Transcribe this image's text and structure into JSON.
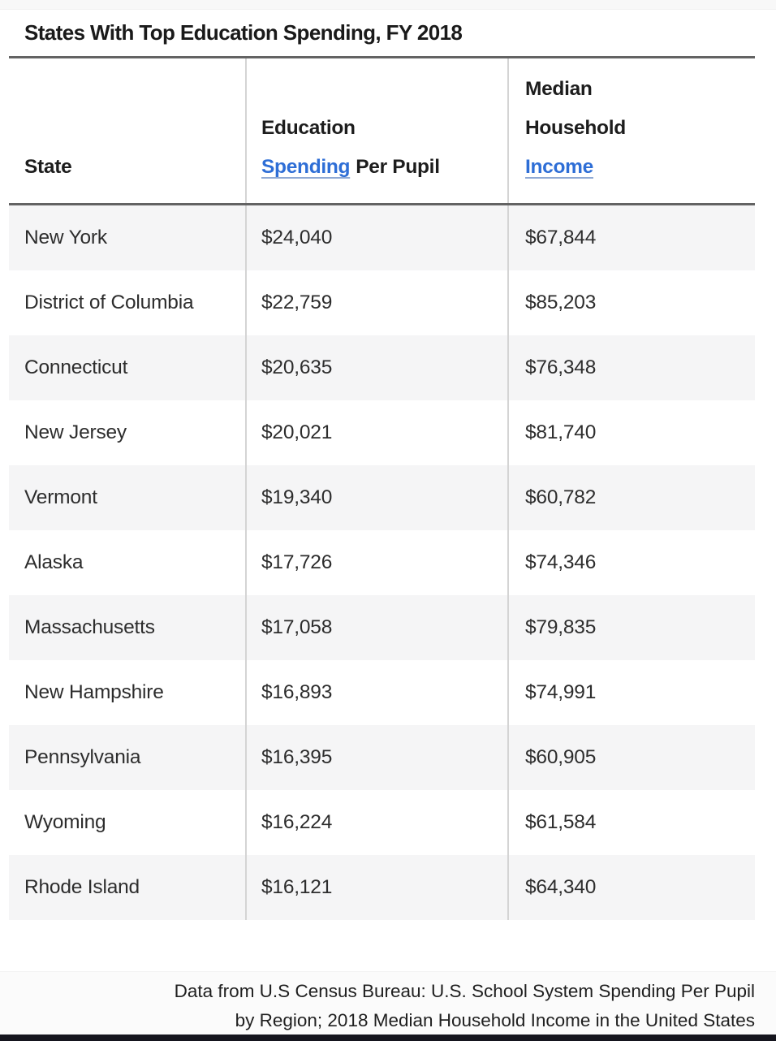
{
  "title": "States With Top Education Spending, FY 2018",
  "header": {
    "col_state": "State",
    "col_spending_line1": "Education",
    "col_spending_link": "Spending",
    "col_spending_rest": "Per Pupil",
    "col_income_line1": "Median",
    "col_income_line2": "Household",
    "col_income_link": "Income"
  },
  "rows": [
    {
      "state": "New York",
      "spending": "$24,040",
      "income": "$67,844"
    },
    {
      "state": "District of Columbia",
      "spending": "$22,759",
      "income": "$85,203"
    },
    {
      "state": "Connecticut",
      "spending": "$20,635",
      "income": "$76,348"
    },
    {
      "state": "New Jersey",
      "spending": "$20,021",
      "income": "$81,740"
    },
    {
      "state": "Vermont",
      "spending": "$19,340",
      "income": "$60,782"
    },
    {
      "state": "Alaska",
      "spending": "$17,726",
      "income": "$74,346"
    },
    {
      "state": "Massachusetts",
      "spending": "$17,058",
      "income": "$79,835"
    },
    {
      "state": "New Hampshire",
      "spending": "$16,893",
      "income": "$74,991"
    },
    {
      "state": "Pennsylvania",
      "spending": "$16,395",
      "income": "$60,905"
    },
    {
      "state": "Wyoming",
      "spending": "$16,224",
      "income": "$61,584"
    },
    {
      "state": "Rhode Island",
      "spending": "$16,121",
      "income": "$64,340"
    }
  ],
  "footer": {
    "line1": "Data from U.S Census Bureau: U.S. School System Spending Per Pupil",
    "line2": "by Region; 2018 Median Household Income in the United States"
  },
  "colors": {
    "link_blue": "#2e6ed6",
    "row_stripe": "#f5f5f6",
    "rule_dark": "#636363",
    "divider": "#d4d4d4",
    "bottom_bar": "#15151e"
  },
  "chart_data": {
    "type": "table",
    "title": "States With Top Education Spending, FY 2018",
    "columns": [
      "State",
      "Education Spending Per Pupil",
      "Median Household Income"
    ],
    "rows": [
      [
        "New York",
        24040,
        67844
      ],
      [
        "District of Columbia",
        22759,
        85203
      ],
      [
        "Connecticut",
        20635,
        76348
      ],
      [
        "New Jersey",
        20021,
        81740
      ],
      [
        "Vermont",
        19340,
        60782
      ],
      [
        "Alaska",
        17726,
        74346
      ],
      [
        "Massachusetts",
        17058,
        79835
      ],
      [
        "New Hampshire",
        16893,
        74991
      ],
      [
        "Pennsylvania",
        16395,
        60905
      ],
      [
        "Wyoming",
        16224,
        61584
      ],
      [
        "Rhode Island",
        16121,
        64340
      ]
    ],
    "source": "Data from U.S Census Bureau: U.S. School System Spending Per Pupil by Region; 2018 Median Household Income in the United States"
  }
}
